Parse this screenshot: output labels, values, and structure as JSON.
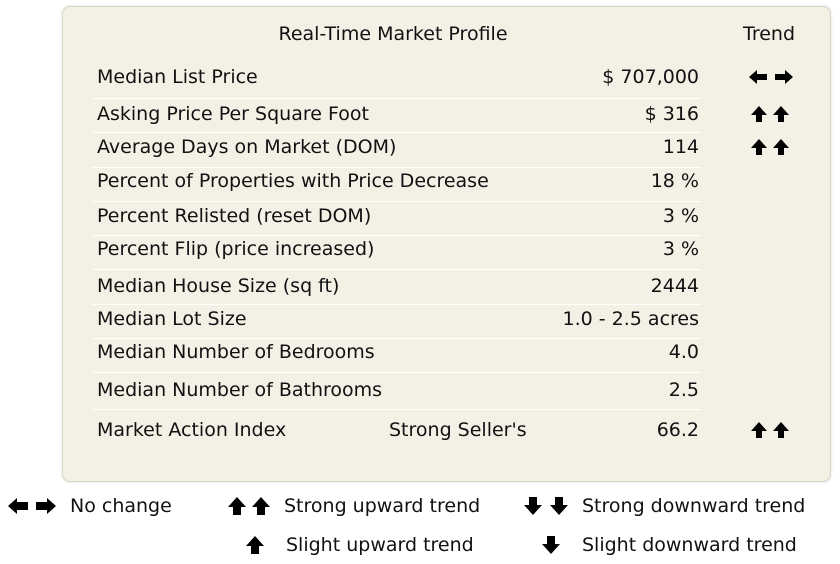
{
  "profile": {
    "title": "Real-Time Market Profile",
    "trend_header": "Trend",
    "rows": [
      {
        "label": "Median List Price",
        "value": "$ 707,000",
        "trend": "no-change-icon"
      },
      {
        "label": "Asking Price Per Square Foot",
        "value": "$ 316",
        "trend": "strong-upward-trend-icon"
      },
      {
        "label": "Average Days on Market (DOM)",
        "value": "114",
        "trend": "strong-upward-trend-icon"
      },
      {
        "label": "Percent of Properties with Price Decrease",
        "value": "18 %",
        "trend": ""
      },
      {
        "label": "Percent Relisted (reset DOM)",
        "value": "3 %",
        "trend": ""
      },
      {
        "label": "Percent Flip (price increased)",
        "value": "3 %",
        "trend": ""
      },
      {
        "label": "Median House Size (sq ft)",
        "value": "2444",
        "trend": ""
      },
      {
        "label": "Median Lot Size",
        "value": "1.0 - 2.5 acres",
        "trend": ""
      },
      {
        "label": "Median Number of Bedrooms",
        "value": "4.0",
        "trend": ""
      },
      {
        "label": "Median Number of Bathrooms",
        "value": "2.5",
        "trend": ""
      },
      {
        "label": "Market Action Index",
        "extra": "Strong Seller's",
        "value": "66.2",
        "trend": "strong-upward-trend-icon"
      }
    ]
  },
  "legend": [
    {
      "icon": "no-change-icon",
      "label": "No change"
    },
    {
      "icon": "strong-upward-trend-icon",
      "label": "Strong upward trend"
    },
    {
      "icon": "strong-downward-trend-icon",
      "label": "Strong downward trend"
    },
    {
      "icon": "slight-upward-trend-icon",
      "label": "Slight upward trend"
    },
    {
      "icon": "slight-downward-trend-icon",
      "label": "Slight downward trend"
    }
  ],
  "colors": {
    "panel_bg": "#f3f0e6",
    "text": "#111111"
  }
}
